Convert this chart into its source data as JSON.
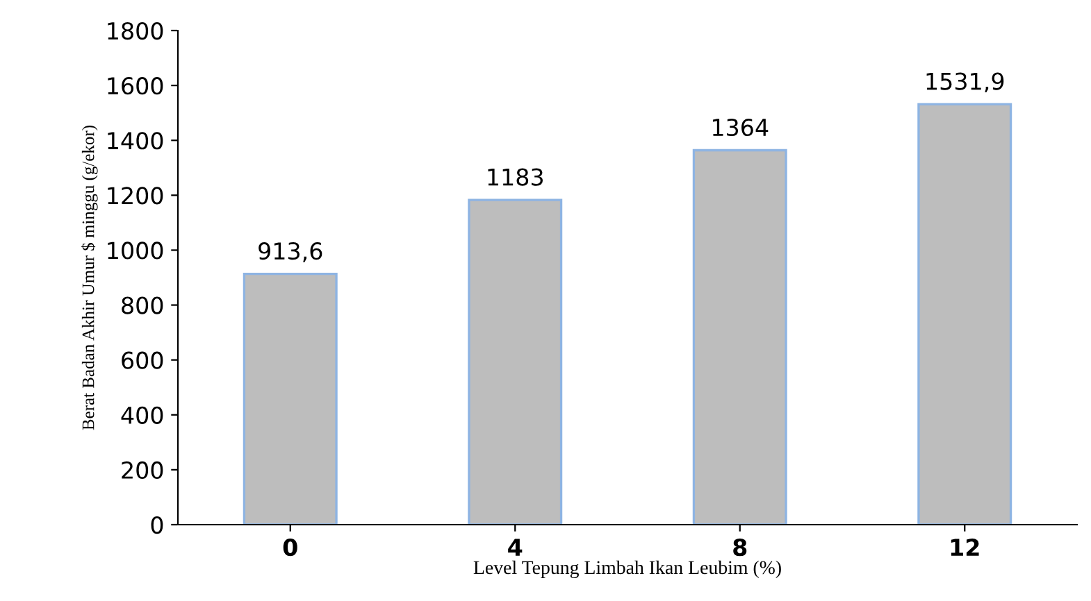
{
  "chart_data": {
    "type": "bar",
    "categories": [
      "0",
      "4",
      "8",
      "12"
    ],
    "values": [
      913.6,
      1183,
      1364,
      1531.9
    ],
    "value_labels": [
      "913,6",
      "1183",
      "1364",
      "1531,9"
    ],
    "color": "#bdbdbd",
    "xlabel": "Level Tepung Limbah Ikan Leubim (%)",
    "ylabel": "Berat Badan Akhir Umur $ minggu (g/ekor)",
    "ylim": [
      0,
      1800
    ],
    "yticks": [
      0,
      200,
      400,
      600,
      800,
      1000,
      1200,
      1400,
      1600,
      1800
    ],
    "grid": false,
    "legend": false
  }
}
